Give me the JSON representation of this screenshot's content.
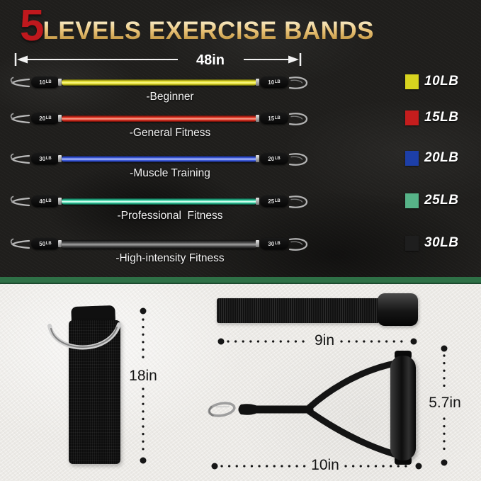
{
  "colors": {
    "dark_bg": "#201f1d",
    "light_bg": "#eceae6",
    "divider_green": "#2e7046",
    "accent_red": "#bf181d",
    "title_gold": "#e2ba66",
    "measure_text": "#141414"
  },
  "header": {
    "level_count": "5",
    "title": "LEVELS EXERCISE BANDS",
    "length_label": "48in"
  },
  "bands": [
    {
      "label": "-Beginner",
      "left_tag": "10",
      "right_tag": "10",
      "tag_unit": "LB",
      "weight_label": "10LB",
      "band_color": "#e4de25",
      "band_center": "#f7f47e",
      "band_edge": "#55530c",
      "swatch_color": "#d8d41f"
    },
    {
      "label": "-General Fitness",
      "left_tag": "20",
      "right_tag": "15",
      "tag_unit": "LB",
      "weight_label": "15LB",
      "band_color": "#e03020",
      "band_center": "#f59a86",
      "band_edge": "#5e0d07",
      "swatch_color": "#c41d1d"
    },
    {
      "label": "-Muscle Training",
      "left_tag": "30",
      "right_tag": "20",
      "tag_unit": "LB",
      "weight_label": "20LB",
      "band_color": "#3a57de",
      "band_center": "#a9b8f8",
      "band_edge": "#101c4e",
      "swatch_color": "#1d3fa8"
    },
    {
      "label": "-Professional  Fitness",
      "left_tag": "40",
      "right_tag": "25",
      "tag_unit": "LB",
      "weight_label": "25LB",
      "band_color": "#2fd0a2",
      "band_center": "#d7fff0",
      "band_edge": "#0a4634",
      "swatch_color": "#57b388"
    },
    {
      "label": "-High-intensity Fitness",
      "left_tag": "50",
      "right_tag": "30",
      "tag_unit": "LB",
      "weight_label": "30LB",
      "band_color": "#4c4c4c",
      "band_center": "#969696",
      "band_edge": "#0d0d0d",
      "swatch_color": "#1e1e1e"
    }
  ],
  "accessories": {
    "ankle_strap": {
      "length_label": "18in"
    },
    "door_anchor": {
      "length_label": "9in"
    },
    "handle": {
      "width_label": "10in",
      "height_label": "5.7in"
    }
  }
}
